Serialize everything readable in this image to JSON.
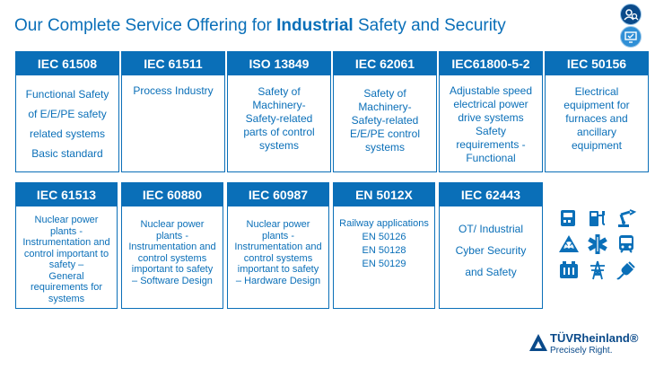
{
  "header": {
    "title_prefix": "Our Complete Service Offering for ",
    "title_bold": "Industrial",
    "title_suffix": " Safety and Security",
    "icons": [
      "person-search-icon",
      "monitor-check-icon"
    ]
  },
  "colors": {
    "accent": "#0a6fb8",
    "dark": "#0a4a8a"
  },
  "row1": [
    {
      "code": "IEC 61508",
      "lines": [
        "Functional Safety",
        "of E/E/PE safety",
        "related systems",
        "Basic standard"
      ]
    },
    {
      "code": "IEC 61511",
      "lines": [
        "Process Industry"
      ]
    },
    {
      "code": "ISO 13849",
      "lines": [
        "Safety of",
        "Machinery-",
        "Safety-related",
        "parts of control",
        "systems"
      ]
    },
    {
      "code": "IEC 62061",
      "lines": [
        "Safety of",
        "Machinery-",
        "Safety-related",
        "E/E/PE control",
        "systems"
      ]
    },
    {
      "code": "IEC61800-5-2",
      "lines": [
        "Adjustable speed",
        "electrical power",
        "drive systems",
        "Safety",
        "requirements -",
        "Functional"
      ]
    },
    {
      "code": "IEC 50156",
      "lines": [
        "Electrical",
        "equipment for",
        "furnaces and",
        "ancillary",
        "equipment"
      ]
    }
  ],
  "row2": [
    {
      "code": "IEC 61513",
      "lines": [
        "Nuclear power",
        "plants -",
        "Instrumentation and",
        "control important to",
        "safety –",
        "General",
        "requirements for",
        "systems"
      ]
    },
    {
      "code": "IEC 60880",
      "lines": [
        "Nuclear power",
        "plants -",
        "Instrumentation and",
        "control systems",
        "important to safety",
        "– Software Design"
      ]
    },
    {
      "code": "IEC 60987",
      "lines": [
        "Nuclear power",
        "plants -",
        "Instrumentation and",
        "control systems",
        "important to safety",
        "– Hardware Design"
      ]
    },
    {
      "code": "EN 5012X",
      "lines": [
        "Railway applications",
        "EN 50126",
        "EN 50128",
        "EN 50129"
      ]
    },
    {
      "code": "IEC 62443",
      "lines": [
        "OT/ Industrial",
        "Cyber Security",
        "and Safety"
      ]
    }
  ],
  "industry_icons": [
    "control-panel-icon",
    "fuel-pump-icon",
    "robot-arm-icon",
    "radiation-icon",
    "medical-star-icon",
    "train-icon",
    "battery-icon",
    "power-tower-icon",
    "plug-icon"
  ],
  "brand": {
    "name": "TÜVRheinland®",
    "tagline": "Precisely Right."
  }
}
